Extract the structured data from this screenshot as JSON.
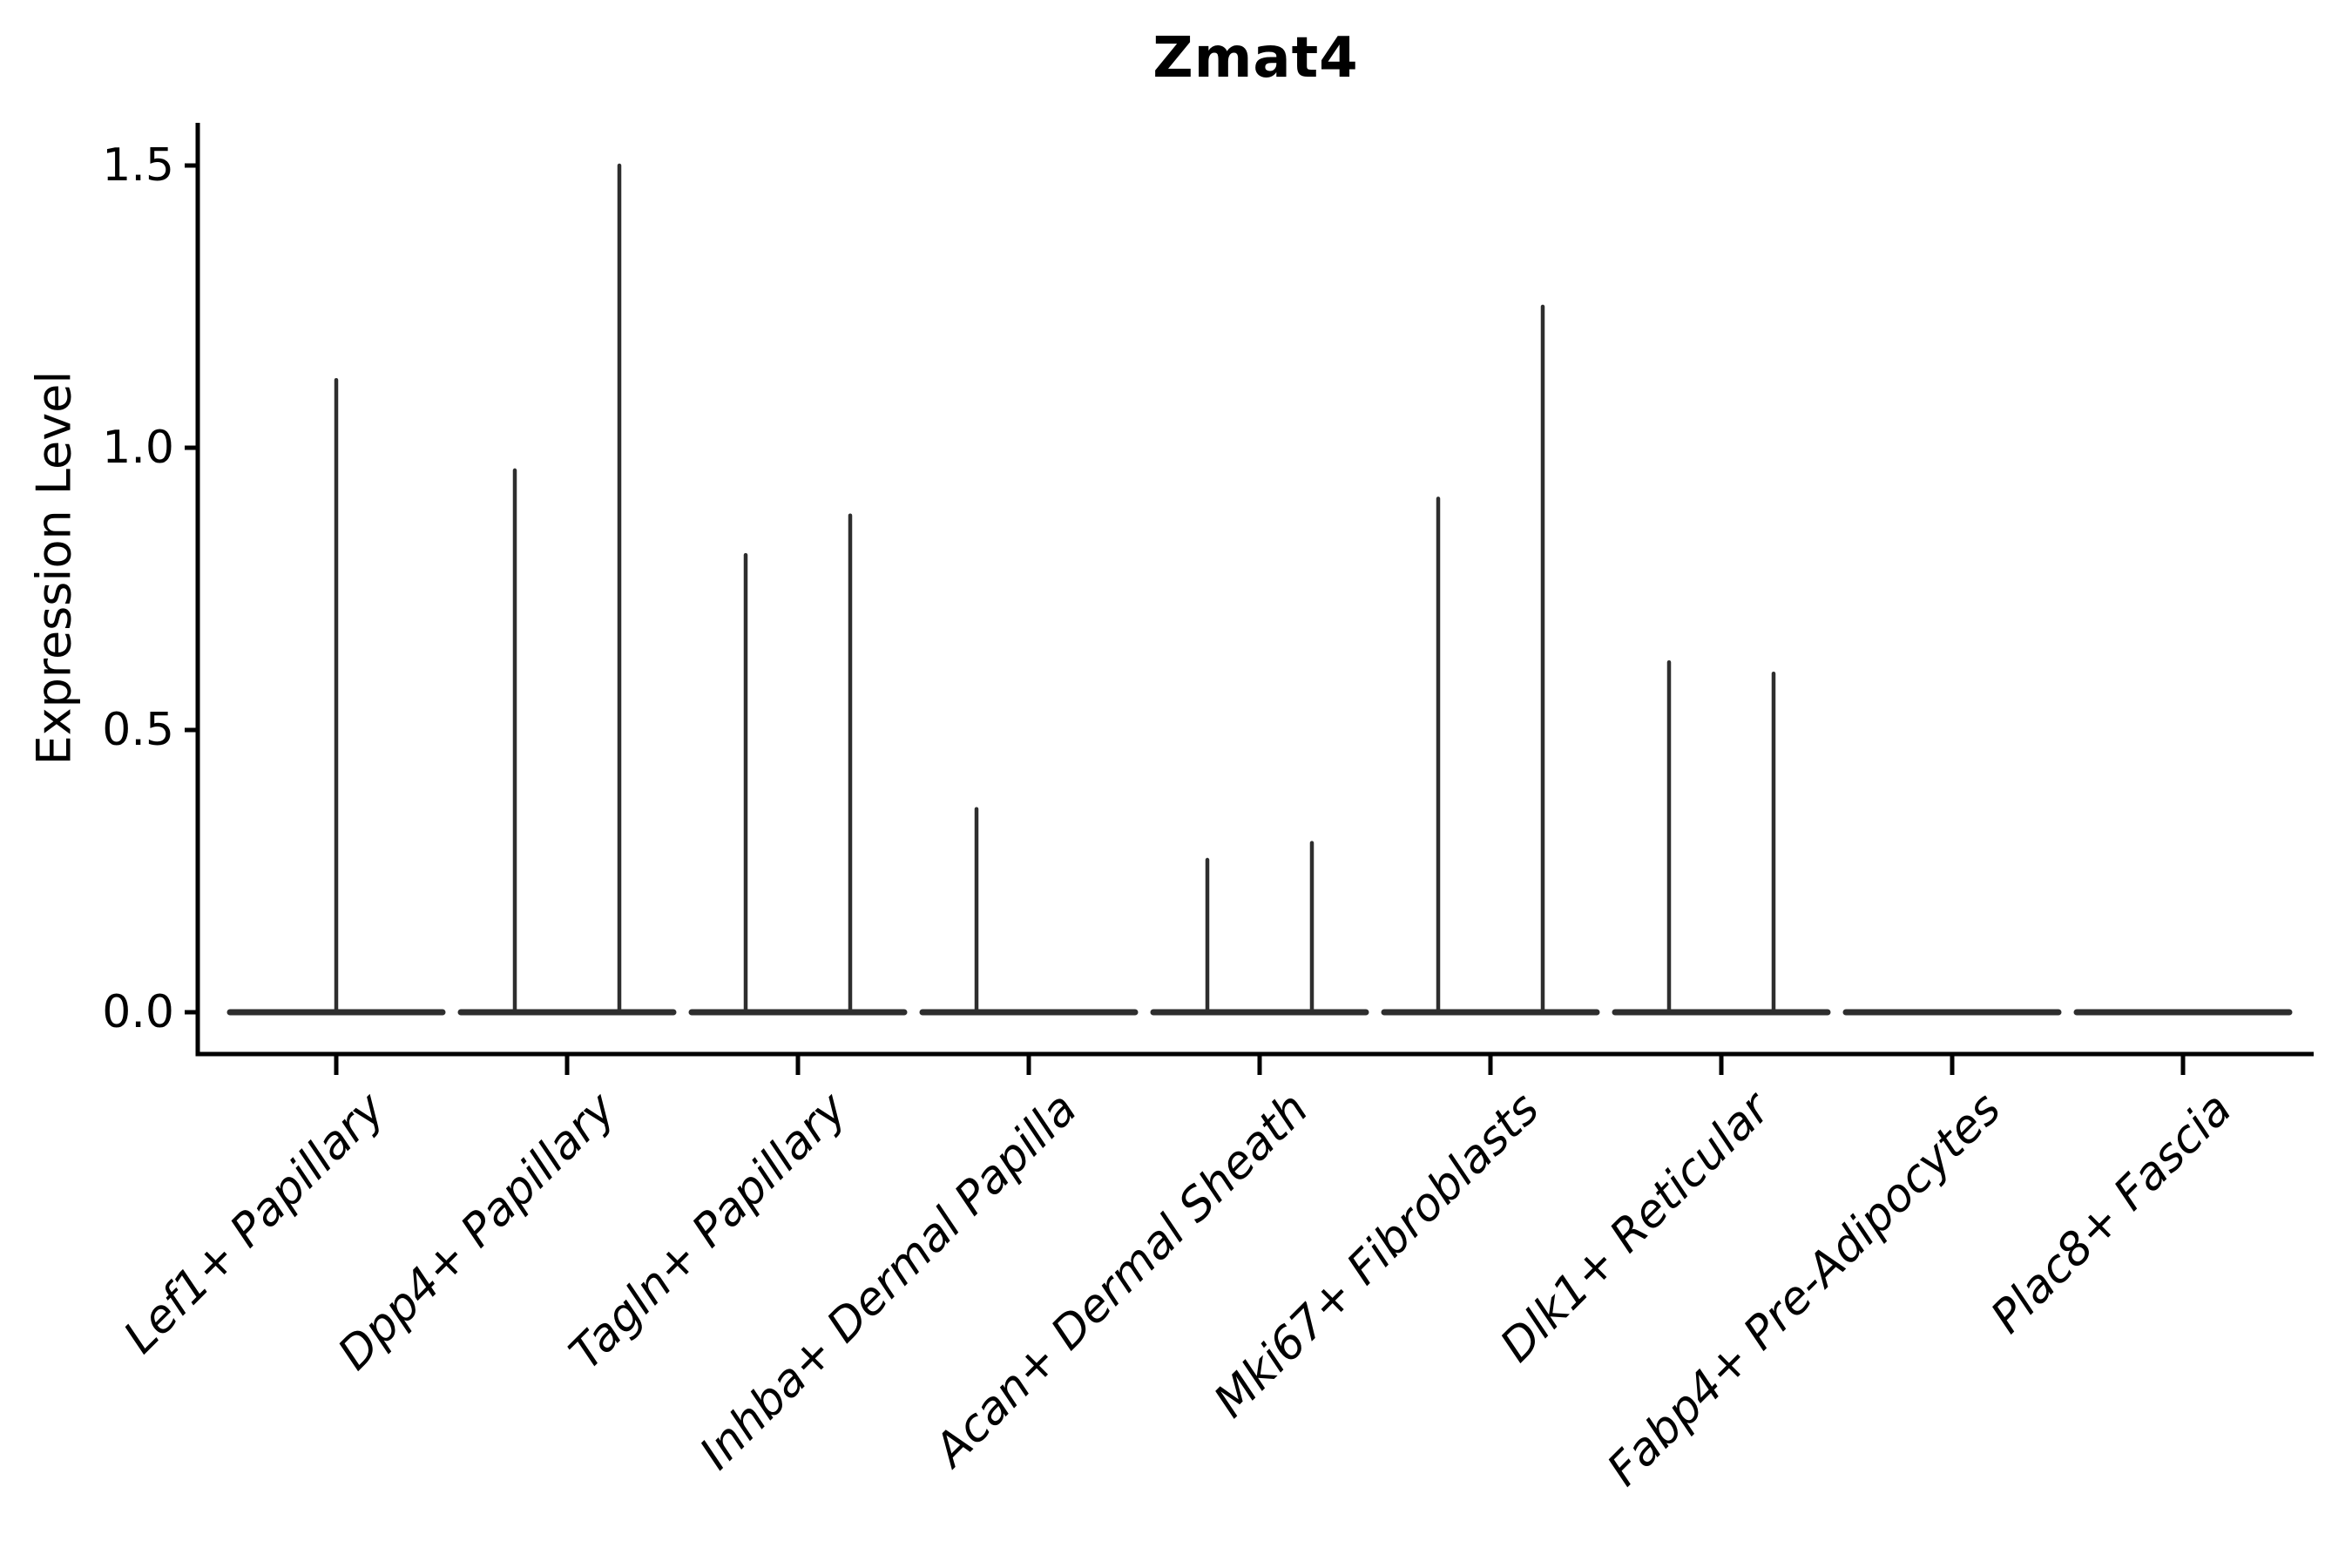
{
  "title": "Zmat4",
  "y_axis": {
    "label": "Expression Level",
    "tick_labels": [
      "0.0",
      "0.5",
      "1.0",
      "1.5"
    ],
    "tick_values": [
      0.0,
      0.5,
      1.0,
      1.5
    ]
  },
  "colors": {
    "violin_stroke": "#2e2e2e",
    "axis": "#000000",
    "text": "#000000",
    "background": "#ffffff"
  },
  "chart_data": {
    "type": "violin",
    "title": "Zmat4",
    "xlabel": "",
    "ylabel": "Expression Level",
    "ylim": [
      0,
      1.58
    ],
    "yticks": [
      0.0,
      0.5,
      1.0,
      1.5
    ],
    "grid": false,
    "legend": "none",
    "description": "Violin plot of Zmat4 expression per fibroblast cell type; violins collapse to a flat baseline at 0 with thin vertical density spikes reaching each group's maximum expression. Most categories contain two side-by-side violins (left/right); Lef1+ has a single centered violin; Fabp4+ and Plac8+ are flat at zero.",
    "categories": [
      "Lef1+ Papillary",
      "Dpp4+ Papillary",
      "Tagln+ Papillary",
      "Inhba+ Dermal Papilla",
      "Acan+ Dermal Sheath",
      "Mki67+ Fibroblasts",
      "Dlk1+ Reticular",
      "Fabp4+ Pre-Adipocytes",
      "Plac8+ Fascia"
    ],
    "violins": [
      {
        "category": "Lef1+ Papillary",
        "spikes": [
          {
            "slot": "center",
            "max": 1.12
          }
        ]
      },
      {
        "category": "Dpp4+ Papillary",
        "spikes": [
          {
            "slot": "left",
            "max": 0.96
          },
          {
            "slot": "right",
            "max": 1.5
          }
        ]
      },
      {
        "category": "Tagln+ Papillary",
        "spikes": [
          {
            "slot": "left",
            "max": 0.81
          },
          {
            "slot": "right",
            "max": 0.88
          }
        ]
      },
      {
        "category": "Inhba+ Dermal Papilla",
        "spikes": [
          {
            "slot": "left",
            "max": 0.36
          }
        ]
      },
      {
        "category": "Acan+ Dermal Sheath",
        "spikes": [
          {
            "slot": "left",
            "max": 0.27
          },
          {
            "slot": "right",
            "max": 0.3
          }
        ]
      },
      {
        "category": "Mki67+ Fibroblasts",
        "spikes": [
          {
            "slot": "left",
            "max": 0.91
          },
          {
            "slot": "right",
            "max": 1.25
          }
        ]
      },
      {
        "category": "Dlk1+ Reticular",
        "spikes": [
          {
            "slot": "left",
            "max": 0.62
          },
          {
            "slot": "right",
            "max": 0.6
          }
        ]
      },
      {
        "category": "Fabp4+ Pre-Adipocytes",
        "spikes": []
      },
      {
        "category": "Plac8+ Fascia",
        "spikes": []
      }
    ]
  }
}
